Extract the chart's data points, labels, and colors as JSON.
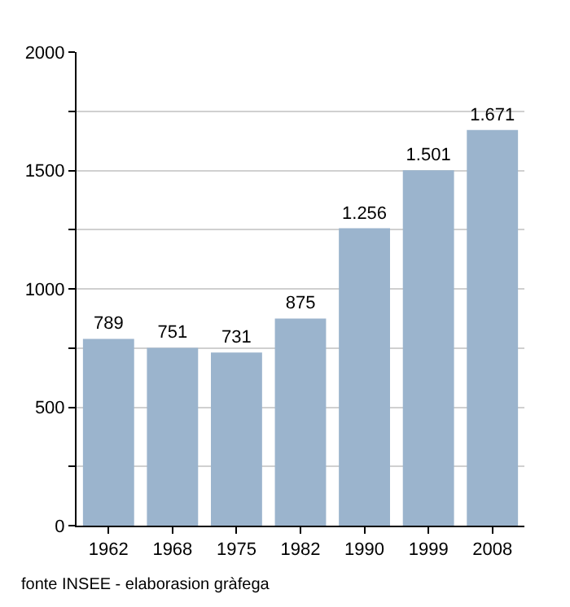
{
  "chart_data": {
    "type": "bar",
    "categories": [
      "1962",
      "1968",
      "1975",
      "1982",
      "1990",
      "1999",
      "2008"
    ],
    "values": [
      789,
      751,
      731,
      875,
      1256,
      1501,
      1671
    ],
    "value_labels": [
      "789",
      "751",
      "731",
      "875",
      "1.256",
      "1.501",
      "1.671"
    ],
    "color": "#9bb4cd",
    "ylim": [
      0,
      2000
    ],
    "yticks": [
      0,
      {
        "value": 250,
        "label": null
      },
      500,
      {
        "value": 750,
        "label": null
      },
      1000,
      {
        "value": 1250,
        "label": null
      },
      1500,
      {
        "value": 1750,
        "label": null
      },
      2000
    ],
    "grid": "y",
    "legend": false,
    "annotations": [
      "fonte INSEE - elaborasion gràfega"
    ]
  }
}
